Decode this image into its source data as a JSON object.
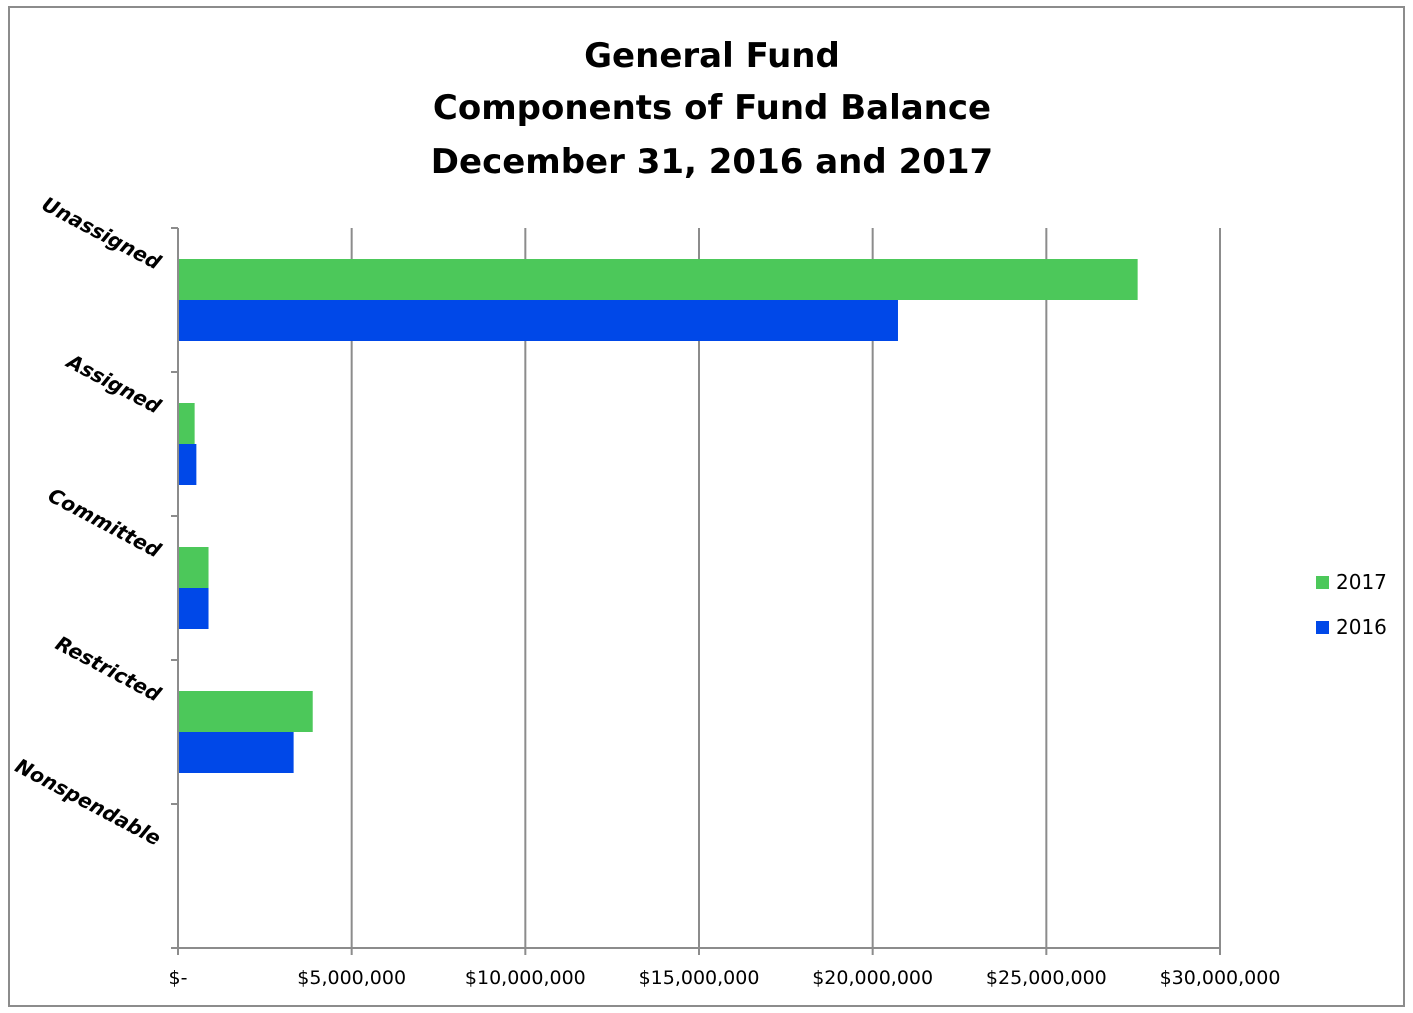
{
  "chart_data": {
    "type": "bar",
    "orientation": "horizontal",
    "title": [
      "General Fund",
      "Components of Fund Balance",
      "December 31, 2016 and 2017"
    ],
    "categories": [
      "Unassigned",
      "Assigned",
      "Committed",
      "Restricted",
      "Nonspendable"
    ],
    "series": [
      {
        "name": "2017",
        "color": "#4cc85a",
        "values": [
          27600000,
          450000,
          850000,
          3850000,
          0
        ]
      },
      {
        "name": "2016",
        "color": "#0048e8",
        "values": [
          20700000,
          500000,
          850000,
          3300000,
          0
        ]
      }
    ],
    "xlim": [
      0,
      30000000
    ],
    "xticks": [
      0,
      5000000,
      10000000,
      15000000,
      20000000,
      25000000,
      30000000
    ],
    "xtick_labels": [
      "$-",
      "$5,000,000",
      "$10,000,000",
      "$15,000,000",
      "$20,000,000",
      "$25,000,000",
      "$30,000,000"
    ],
    "grid": "vertical",
    "legend_position": "right",
    "xlabel": "",
    "ylabel": ""
  }
}
